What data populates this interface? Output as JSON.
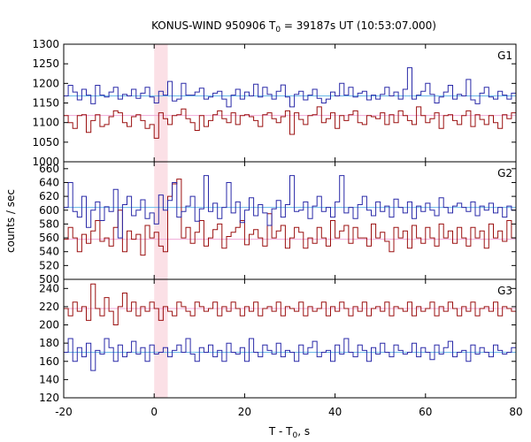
{
  "chart_data": {
    "type": "line",
    "title_prefix": "KONUS-WIND 950906 T",
    "title_sub": "0",
    "title_suffix": " = 39187s UT (10:53:07.000)",
    "xlabel_prefix": "T - T",
    "xlabel_sub": "0",
    "xlabel_suffix": ", s",
    "ylabel": "counts / sec",
    "xlim": [
      -20,
      80
    ],
    "xticks": [
      -20,
      0,
      20,
      40,
      60,
      80
    ],
    "highlight_band": [
      0,
      3
    ],
    "step": 1,
    "x_start": -20,
    "colors": {
      "blue": "#2a2aa8",
      "red": "#9b1010",
      "blue_mean": "#68b8e8",
      "red_mean": "#f0a8d8",
      "band": "#fbe0e6"
    },
    "panels": [
      {
        "label": "G1",
        "ylim": [
          1000,
          1300
        ],
        "yticks": [
          1000,
          1050,
          1100,
          1150,
          1200,
          1250,
          1300
        ],
        "blue_mean": 1168,
        "red_mean": 1118,
        "blue_values": [
          1168,
          1195,
          1178,
          1158,
          1185,
          1170,
          1148,
          1195,
          1170,
          1165,
          1178,
          1190,
          1160,
          1172,
          1168,
          1185,
          1162,
          1175,
          1190,
          1165,
          1150,
          1180,
          1170,
          1205,
          1155,
          1160,
          1200,
          1170,
          1170,
          1178,
          1188,
          1160,
          1165,
          1175,
          1180,
          1160,
          1140,
          1170,
          1185,
          1160,
          1178,
          1168,
          1198,
          1165,
          1190,
          1172,
          1160,
          1180,
          1196,
          1165,
          1140,
          1172,
          1180,
          1158,
          1170,
          1185,
          1162,
          1150,
          1160,
          1178,
          1168,
          1200,
          1170,
          1190,
          1165,
          1175,
          1180,
          1158,
          1170,
          1160,
          1172,
          1190,
          1168,
          1178,
          1160,
          1185,
          1240,
          1160,
          1170,
          1180,
          1200,
          1172,
          1150,
          1165,
          1178,
          1195,
          1160,
          1172,
          1168,
          1210,
          1158,
          1148,
          1175,
          1190,
          1165,
          1160,
          1180,
          1170,
          1160,
          1175
        ],
        "red_values": [
          1118,
          1100,
          1085,
          1118,
          1120,
          1075,
          1105,
          1120,
          1090,
          1095,
          1115,
          1130,
          1125,
          1100,
          1090,
          1115,
          1120,
          1105,
          1085,
          1095,
          1060,
          1125,
          1110,
          1095,
          1118,
          1120,
          1135,
          1110,
          1100,
          1080,
          1118,
          1090,
          1105,
          1120,
          1130,
          1110,
          1100,
          1125,
          1095,
          1118,
          1120,
          1115,
          1105,
          1090,
          1120,
          1125,
          1110,
          1100,
          1115,
          1130,
          1070,
          1125,
          1108,
          1095,
          1118,
          1120,
          1140,
          1100,
          1110,
          1125,
          1085,
          1118,
          1105,
          1120,
          1130,
          1100,
          1095,
          1118,
          1115,
          1110,
          1125,
          1095,
          1120,
          1100,
          1130,
          1118,
          1105,
          1095,
          1140,
          1118,
          1100,
          1110,
          1125,
          1085,
          1118,
          1120,
          1105,
          1095,
          1118,
          1130,
          1090,
          1120,
          1108,
          1095,
          1118,
          1100,
          1085,
          1120,
          1110,
          1125
        ]
      },
      {
        "label": "G2",
        "ylim": [
          500,
          670
        ],
        "yticks": [
          500,
          520,
          540,
          560,
          580,
          600,
          620,
          640,
          660
        ],
        "blue_mean": 604,
        "red_mean": 558,
        "blue_values": [
          604,
          640,
          598,
          590,
          620,
          575,
          600,
          612,
          585,
          605,
          598,
          630,
          560,
          608,
          620,
          592,
          600,
          615,
          588,
          596,
          580,
          622,
          600,
          614,
          640,
          590,
          598,
          606,
          620,
          584,
          602,
          650,
          598,
          610,
          588,
          604,
          640,
          596,
          612,
          582,
          600,
          618,
          592,
          608,
          596,
          578,
          602,
          614,
          590,
          608,
          650,
          598,
          600,
          612,
          588,
          606,
          620,
          598,
          604,
          590,
          612,
          650,
          596,
          604,
          588,
          608,
          620,
          600,
          592,
          612,
          598,
          606,
          590,
          616,
          604,
          596,
          612,
          588,
          606,
          598,
          610,
          600,
          592,
          618,
          604,
          596,
          606,
          610,
          604,
          598,
          612,
          592,
          606,
          600,
          610,
          596,
          604,
          590,
          606,
          600
        ],
        "red_values": [
          558,
          575,
          560,
          540,
          565,
          552,
          570,
          585,
          555,
          560,
          548,
          575,
          600,
          540,
          570,
          558,
          565,
          535,
          578,
          560,
          568,
          548,
          540,
          620,
          638,
          645,
          560,
          575,
          552,
          568,
          585,
          548,
          560,
          572,
          580,
          545,
          562,
          568,
          575,
          585,
          550,
          565,
          572,
          560,
          548,
          595,
          560,
          570,
          578,
          545,
          560,
          575,
          568,
          545,
          560,
          552,
          575,
          560,
          548,
          585,
          560,
          570,
          578,
          552,
          575,
          560,
          560,
          548,
          580,
          560,
          568,
          555,
          540,
          575,
          560,
          570,
          545,
          578,
          560,
          552,
          575,
          560,
          548,
          580,
          560,
          570,
          552,
          575,
          560,
          548,
          575,
          560,
          570,
          545,
          580,
          560,
          570,
          555,
          585,
          560
        ]
      },
      {
        "label": "G3",
        "ylim": [
          120,
          250
        ],
        "yticks": [
          120,
          140,
          160,
          180,
          200,
          220,
          240
        ],
        "blue_mean": 170,
        "red_mean": 218,
        "blue_values": [
          170,
          185,
          160,
          175,
          165,
          180,
          150,
          172,
          168,
          185,
          175,
          160,
          178,
          165,
          170,
          182,
          168,
          175,
          160,
          178,
          168,
          170,
          175,
          165,
          172,
          178,
          170,
          185,
          168,
          160,
          175,
          170,
          178,
          165,
          172,
          160,
          180,
          170,
          168,
          175,
          160,
          185,
          170,
          165,
          178,
          172,
          168,
          180,
          165,
          172,
          170,
          160,
          178,
          168,
          175,
          182,
          165,
          170,
          172,
          160,
          178,
          168,
          185,
          170,
          165,
          178,
          172,
          160,
          175,
          168,
          180,
          170,
          165,
          178,
          172,
          168,
          170,
          180,
          165,
          175,
          170,
          162,
          178,
          168,
          175,
          182,
          165,
          170,
          172,
          160,
          178,
          168,
          175,
          170,
          165,
          178,
          172,
          168,
          170,
          175
        ],
        "red_values": [
          218,
          210,
          225,
          215,
          220,
          205,
          245,
          218,
          210,
          230,
          215,
          200,
          220,
          235,
          215,
          225,
          210,
          220,
          215,
          225,
          218,
          205,
          220,
          215,
          210,
          225,
          220,
          215,
          210,
          225,
          220,
          215,
          218,
          225,
          210,
          220,
          215,
          225,
          218,
          210,
          220,
          215,
          225,
          210,
          218,
          220,
          215,
          225,
          210,
          220,
          218,
          215,
          225,
          210,
          220,
          215,
          218,
          225,
          210,
          220,
          215,
          225,
          218,
          210,
          220,
          215,
          225,
          210,
          218,
          220,
          215,
          225,
          210,
          220,
          218,
          215,
          225,
          210,
          220,
          215,
          218,
          225,
          210,
          220,
          215,
          225,
          218,
          210,
          220,
          215,
          225,
          210,
          218,
          220,
          215,
          225,
          210,
          220,
          218,
          215
        ]
      }
    ]
  }
}
